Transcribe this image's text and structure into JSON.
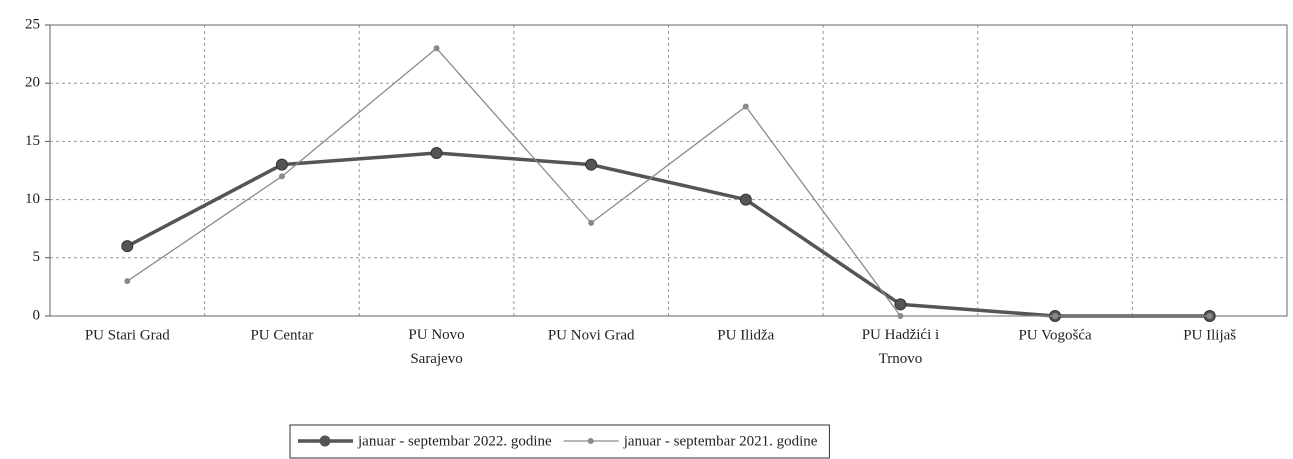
{
  "chart_data": {
    "type": "line",
    "categories": [
      "PU Stari Grad",
      "PU Centar",
      "PU Novo Sarajevo",
      "PU Novi Grad",
      "PU Ilidža",
      "PU Hadžići i Trnovo",
      "PU Vogošća",
      "PU Ilijaš"
    ],
    "series": [
      {
        "name": "januar - septembar 2022. godine",
        "color": "#555555",
        "values": [
          6,
          13,
          14,
          13,
          10,
          1,
          0,
          0
        ]
      },
      {
        "name": "januar - septembar 2021. godine",
        "color": "#8a8a8a",
        "values": [
          3,
          12,
          23,
          8,
          18,
          0,
          0,
          0
        ]
      }
    ],
    "ylim": [
      0,
      25
    ],
    "yticks": [
      0,
      5,
      10,
      15,
      20,
      25
    ],
    "grid": true,
    "legend": "bottom"
  }
}
